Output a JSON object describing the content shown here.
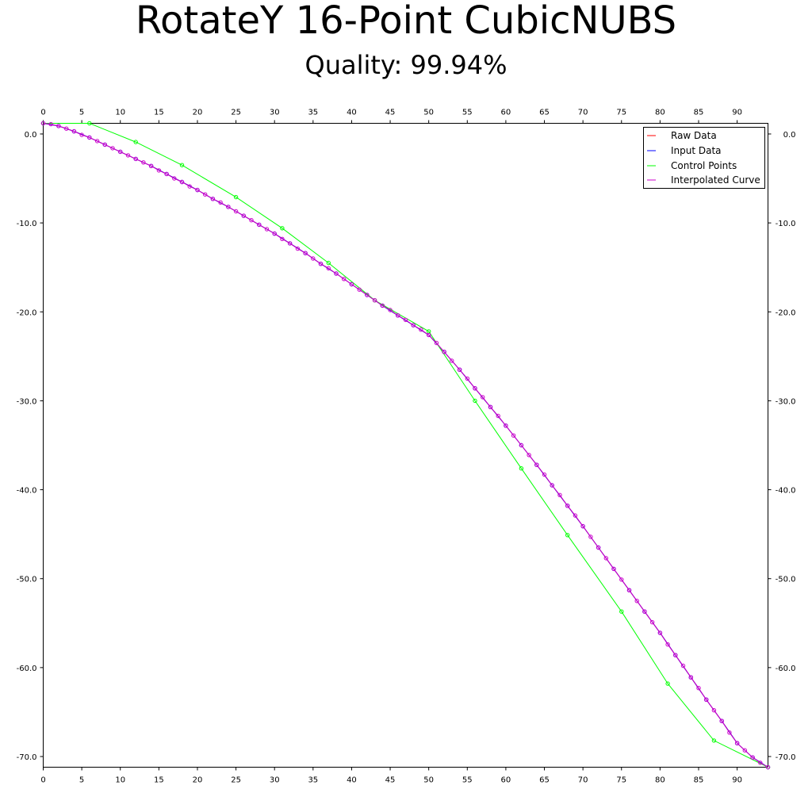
{
  "chart_data": {
    "type": "line",
    "title": "RotateY 16-Point CubicNUBS",
    "subtitle": "Quality: 99.94%",
    "xlabel": "",
    "ylabel": "",
    "xlim": [
      0,
      94
    ],
    "ylim": [
      -71.2,
      1.2
    ],
    "x_ticks": [
      0,
      5,
      10,
      15,
      20,
      25,
      30,
      35,
      40,
      45,
      50,
      55,
      60,
      65,
      70,
      75,
      80,
      85,
      90
    ],
    "y_ticks": [
      0,
      -10,
      -20,
      -30,
      -40,
      -50,
      -60,
      -70
    ],
    "y_tick_labels": [
      "0.0",
      "-10.0",
      "-20.0",
      "-30.0",
      "-40.0",
      "-50.0",
      "-60.0",
      "-70.0"
    ],
    "grid": false,
    "legend_position": "top-right",
    "colors": {
      "raw": "#ff0000",
      "input": "#0000ff",
      "control": "#00ff00",
      "curve": "#cc00cc"
    },
    "series": [
      {
        "name": "Raw Data",
        "x": [
          0,
          2,
          4,
          6,
          8,
          10,
          12,
          14,
          16,
          18,
          20,
          22,
          24,
          26,
          28,
          30,
          32,
          34,
          36,
          38,
          40,
          42,
          44,
          46,
          48,
          50,
          52,
          54,
          56,
          58,
          60,
          62,
          64,
          66,
          68,
          70,
          72,
          74,
          76,
          78,
          80,
          82,
          84,
          86,
          88,
          90,
          92,
          94
        ],
        "y": [
          1.2,
          0.9,
          0.3,
          -0.4,
          -1.2,
          -2.0,
          -2.8,
          -3.6,
          -4.5,
          -5.4,
          -6.3,
          -7.3,
          -8.2,
          -9.2,
          -10.2,
          -11.2,
          -12.3,
          -13.4,
          -14.6,
          -15.7,
          -16.9,
          -18.1,
          -19.3,
          -20.4,
          -21.5,
          -22.6,
          -24.5,
          -26.5,
          -28.6,
          -30.7,
          -32.8,
          -35.0,
          -37.2,
          -39.5,
          -41.8,
          -44.1,
          -46.5,
          -48.9,
          -51.3,
          -53.7,
          -56.1,
          -58.6,
          -61.1,
          -63.6,
          -66.0,
          -68.5,
          -70.1,
          -71.2
        ]
      },
      {
        "name": "Input Data",
        "x": [
          0,
          2,
          4,
          6,
          8,
          10,
          12,
          14,
          16,
          18,
          20,
          22,
          24,
          26,
          28,
          30,
          32,
          34,
          36,
          38,
          40,
          42,
          44,
          46,
          48,
          50,
          52,
          54,
          56,
          58,
          60,
          62,
          64,
          66,
          68,
          70,
          72,
          74,
          76,
          78,
          80,
          82,
          84,
          86,
          88,
          90,
          92,
          94
        ],
        "y": [
          1.2,
          0.9,
          0.3,
          -0.4,
          -1.2,
          -2.0,
          -2.8,
          -3.6,
          -4.5,
          -5.4,
          -6.3,
          -7.3,
          -8.2,
          -9.2,
          -10.2,
          -11.2,
          -12.3,
          -13.4,
          -14.6,
          -15.7,
          -16.9,
          -18.1,
          -19.3,
          -20.4,
          -21.5,
          -22.6,
          -24.5,
          -26.5,
          -28.6,
          -30.7,
          -32.8,
          -35.0,
          -37.2,
          -39.5,
          -41.8,
          -44.1,
          -46.5,
          -48.9,
          -51.3,
          -53.7,
          -56.1,
          -58.6,
          -61.1,
          -63.6,
          -66.0,
          -68.5,
          -70.1,
          -71.2
        ]
      },
      {
        "name": "Control Points",
        "x": [
          0,
          6,
          12,
          18,
          25,
          31,
          37,
          43,
          50,
          56,
          62,
          68,
          75,
          81,
          87,
          94
        ],
        "y": [
          1.2,
          1.2,
          -0.9,
          -3.5,
          -7.1,
          -10.6,
          -14.5,
          -18.7,
          -22.2,
          -30.0,
          -37.6,
          -45.1,
          -53.7,
          -61.8,
          -68.2,
          -71.2
        ]
      },
      {
        "name": "Interpolated Curve",
        "x": [
          0,
          1,
          2,
          3,
          4,
          5,
          6,
          7,
          8,
          9,
          10,
          11,
          12,
          13,
          14,
          15,
          16,
          17,
          18,
          19,
          20,
          21,
          22,
          23,
          24,
          25,
          26,
          27,
          28,
          29,
          30,
          31,
          32,
          33,
          34,
          35,
          36,
          37,
          38,
          39,
          40,
          41,
          42,
          43,
          44,
          45,
          46,
          47,
          48,
          49,
          50,
          51,
          52,
          53,
          54,
          55,
          56,
          57,
          58,
          59,
          60,
          61,
          62,
          63,
          64,
          65,
          66,
          67,
          68,
          69,
          70,
          71,
          72,
          73,
          74,
          75,
          76,
          77,
          78,
          79,
          80,
          81,
          82,
          83,
          84,
          85,
          86,
          87,
          88,
          89,
          90,
          91,
          92,
          93,
          94
        ],
        "y": [
          1.2,
          1.1,
          0.9,
          0.6,
          0.3,
          -0.1,
          -0.4,
          -0.8,
          -1.2,
          -1.6,
          -2.0,
          -2.4,
          -2.8,
          -3.2,
          -3.6,
          -4.1,
          -4.5,
          -5.0,
          -5.4,
          -5.9,
          -6.3,
          -6.8,
          -7.3,
          -7.7,
          -8.2,
          -8.7,
          -9.2,
          -9.7,
          -10.2,
          -10.7,
          -11.2,
          -11.8,
          -12.3,
          -12.9,
          -13.4,
          -14.0,
          -14.6,
          -15.1,
          -15.7,
          -16.3,
          -16.9,
          -17.5,
          -18.1,
          -18.7,
          -19.3,
          -19.8,
          -20.4,
          -20.9,
          -21.5,
          -22.0,
          -22.6,
          -23.5,
          -24.5,
          -25.5,
          -26.5,
          -27.5,
          -28.6,
          -29.6,
          -30.7,
          -31.7,
          -32.8,
          -33.9,
          -35.0,
          -36.1,
          -37.2,
          -38.3,
          -39.5,
          -40.6,
          -41.8,
          -42.9,
          -44.1,
          -45.3,
          -46.5,
          -47.7,
          -48.9,
          -50.1,
          -51.3,
          -52.5,
          -53.7,
          -54.9,
          -56.1,
          -57.4,
          -58.6,
          -59.8,
          -61.1,
          -62.3,
          -63.6,
          -64.8,
          -66.0,
          -67.3,
          -68.5,
          -69.3,
          -70.1,
          -70.7,
          -71.2
        ]
      }
    ]
  }
}
